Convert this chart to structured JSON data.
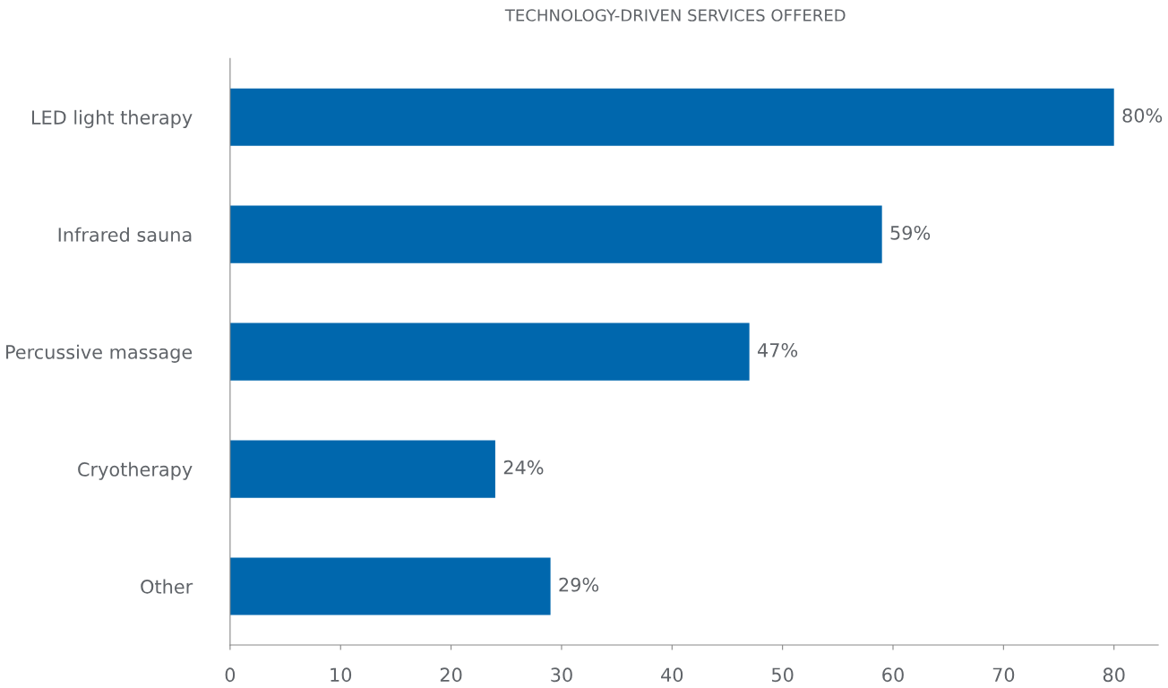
{
  "chart_data": {
    "type": "bar",
    "orientation": "horizontal",
    "title": "TECHNOLOGY-DRIVEN SERVICES OFFERED",
    "categories": [
      "LED light therapy",
      "Infrared sauna",
      "Percussive massage",
      "Cryotherapy",
      "Other"
    ],
    "values": [
      80,
      59,
      47,
      24,
      29
    ],
    "value_labels": [
      "80%",
      "59%",
      "47%",
      "24%",
      "29%"
    ],
    "color": "#0067ad",
    "xlim": [
      0,
      84
    ],
    "xticks": [
      0,
      10,
      20,
      30,
      40,
      50,
      60,
      70,
      80
    ],
    "grid": false
  }
}
